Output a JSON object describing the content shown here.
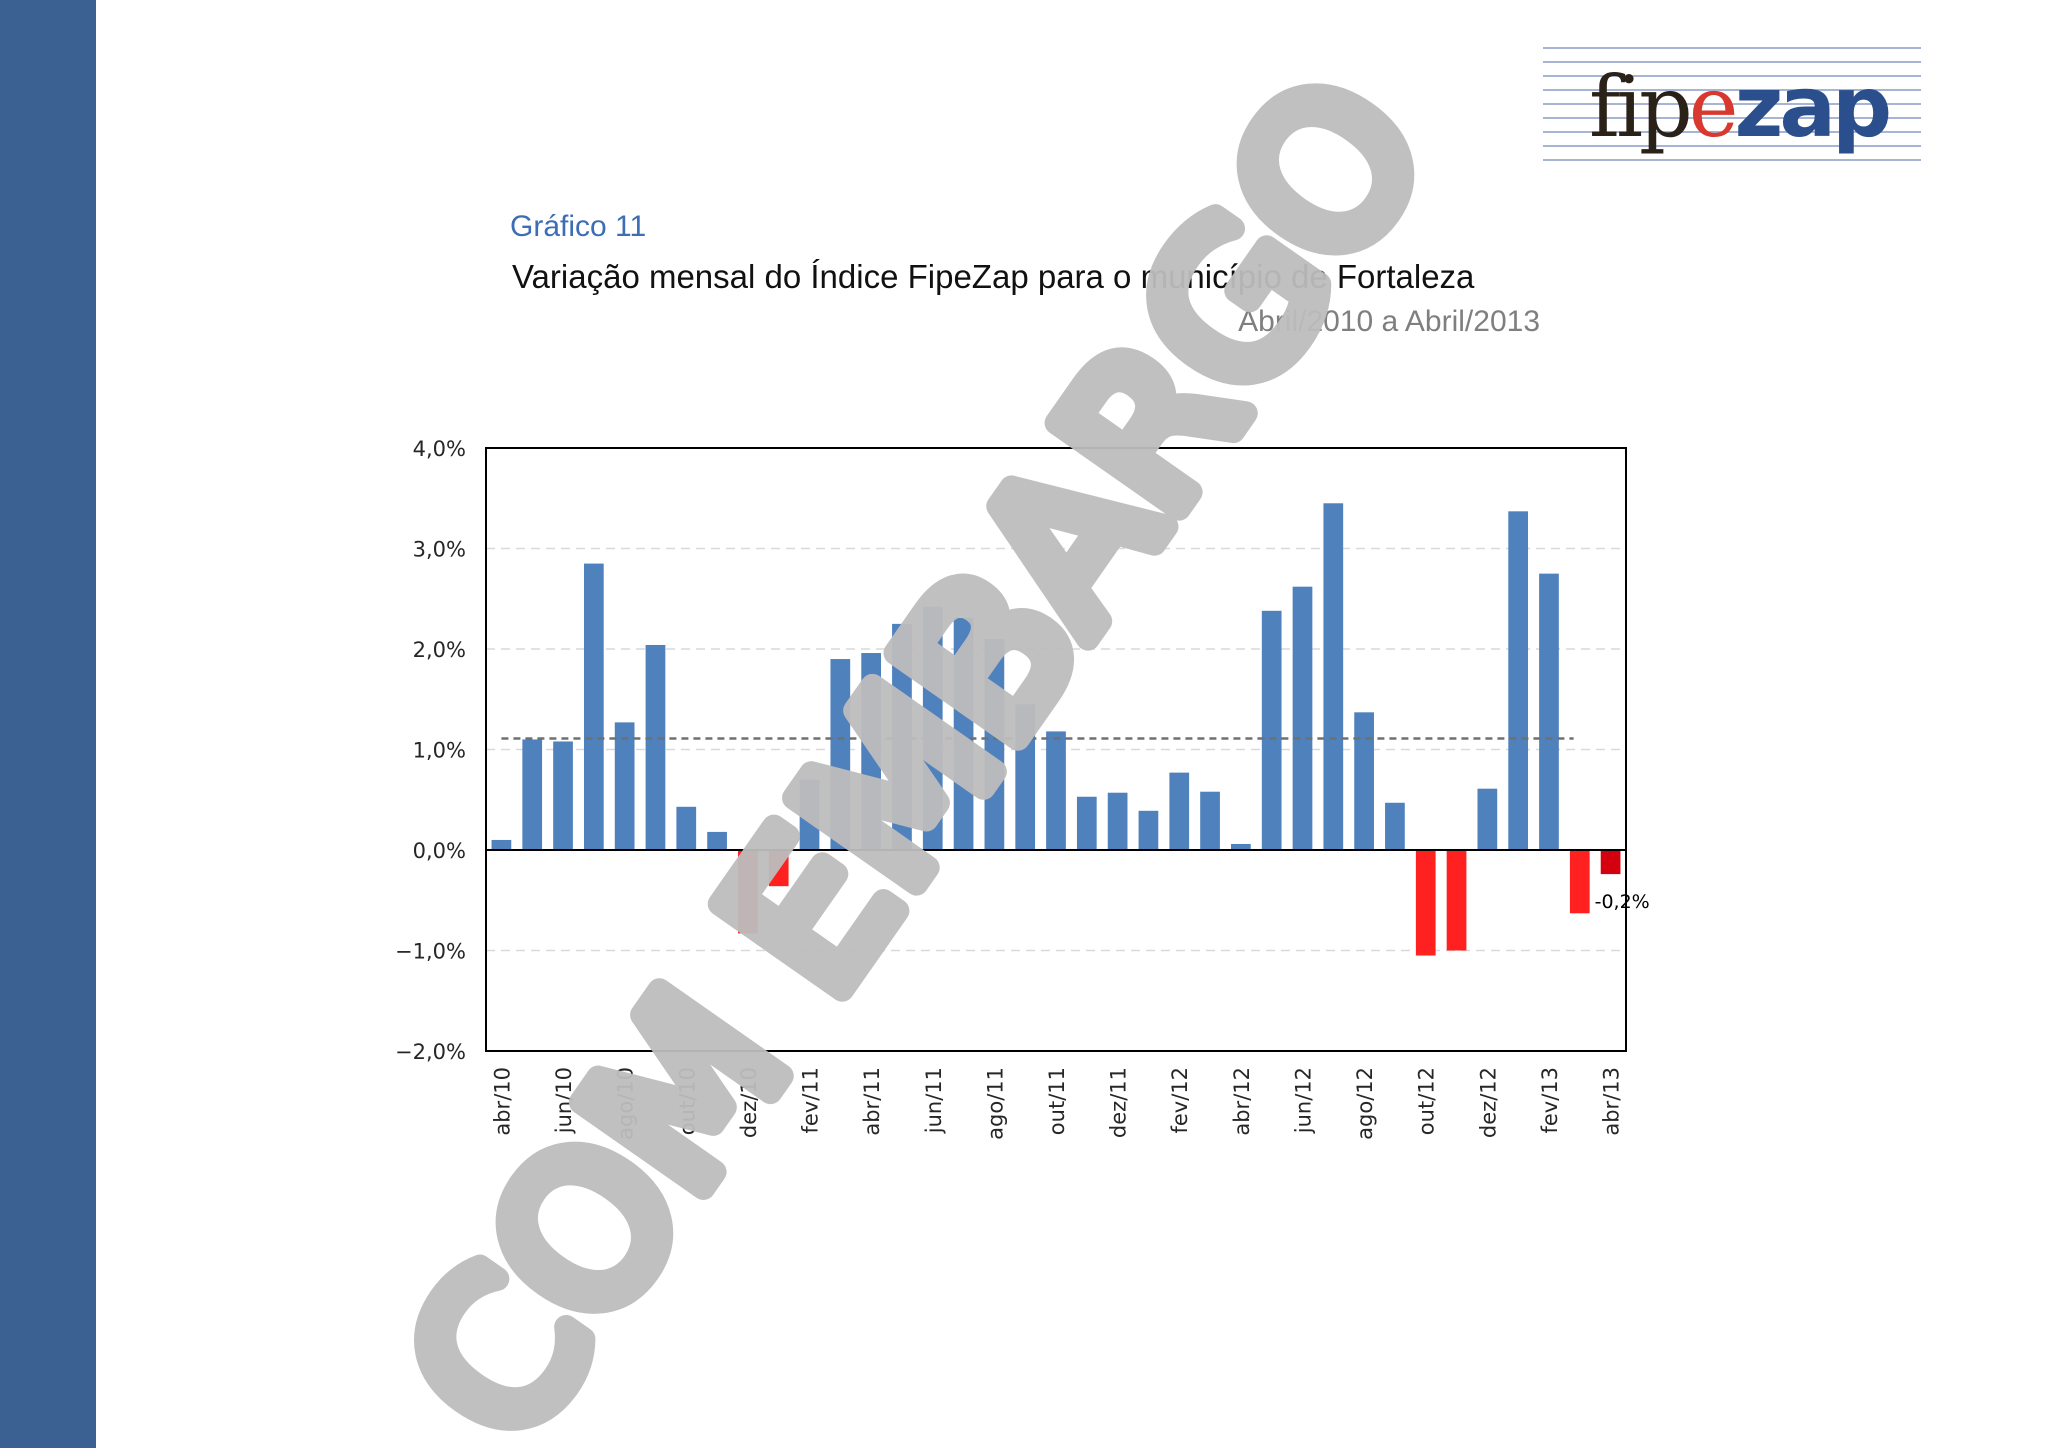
{
  "page": {
    "chart_number": "Gráfico 11",
    "title": "Variação mensal do Índice FipeZap para o município de Fortaleza",
    "subtitle": "Abril/2010 a Abril/2013",
    "brand": {
      "part1": "fip",
      "part2": "e",
      "part3": "zap"
    },
    "watermark": "COM EMBARGO",
    "colors": {
      "sidebar": "#3a6192",
      "positive_bar": "#4f81bd",
      "negative_bar": "#ff2020",
      "last_bar": "#d4000f",
      "average_line": "#707070",
      "watermark": "#bdbdbd",
      "logo_dark": "#2a2119",
      "logo_red": "#d9382e",
      "logo_blue": "#2b4f8c"
    }
  },
  "chart_data": {
    "type": "bar",
    "title": "Variação mensal do Índice FipeZap para o município de Fortaleza",
    "subtitle": "Abril/2010 a Abril/2013",
    "categories": [
      "abr/10",
      "mai/10",
      "jun/10",
      "jul/10",
      "ago/10",
      "set/10",
      "out/10",
      "nov/10",
      "dez/10",
      "jan/11",
      "fev/11",
      "mar/11",
      "abr/11",
      "mai/11",
      "jun/11",
      "jul/11",
      "ago/11",
      "set/11",
      "out/11",
      "nov/11",
      "dez/11",
      "jan/12",
      "fev/12",
      "mar/12",
      "abr/12",
      "mai/12",
      "jun/12",
      "jul/12",
      "ago/12",
      "set/12",
      "out/12",
      "nov/12",
      "dez/12",
      "jan/13",
      "fev/13",
      "mar/13",
      "abr/13"
    ],
    "tick_labels": [
      "abr/10",
      "jun/10",
      "ago/10",
      "out/10",
      "dez/10",
      "fev/11",
      "abr/11",
      "jun/11",
      "ago/11",
      "out/11",
      "dez/11",
      "fev/12",
      "abr/12",
      "jun/12",
      "ago/12",
      "out/12",
      "dez/12",
      "fev/13",
      "abr/13"
    ],
    "values": [
      0.1,
      1.1,
      1.08,
      2.85,
      1.27,
      2.04,
      0.43,
      0.18,
      -0.83,
      -0.36,
      0.7,
      1.9,
      1.96,
      2.25,
      2.42,
      2.31,
      2.1,
      1.45,
      1.18,
      0.53,
      0.57,
      0.39,
      0.77,
      0.58,
      0.06,
      2.38,
      2.62,
      3.45,
      1.37,
      0.47,
      -1.05,
      -1.0,
      0.61,
      3.37,
      2.75,
      -0.63,
      -0.24
    ],
    "average": 1.11,
    "ylim": [
      -2.0,
      4.0
    ],
    "yticks": [
      -2.0,
      -1.0,
      0.0,
      1.0,
      2.0,
      3.0,
      4.0
    ],
    "ytick_labels": [
      "−2,0%",
      "−1,0%",
      "0,0%",
      "1,0%",
      "2,0%",
      "3,0%",
      "4,0%"
    ],
    "annotation": {
      "category": "abr/13",
      "label": "-0,2%"
    },
    "grid": true,
    "legend": "none"
  }
}
